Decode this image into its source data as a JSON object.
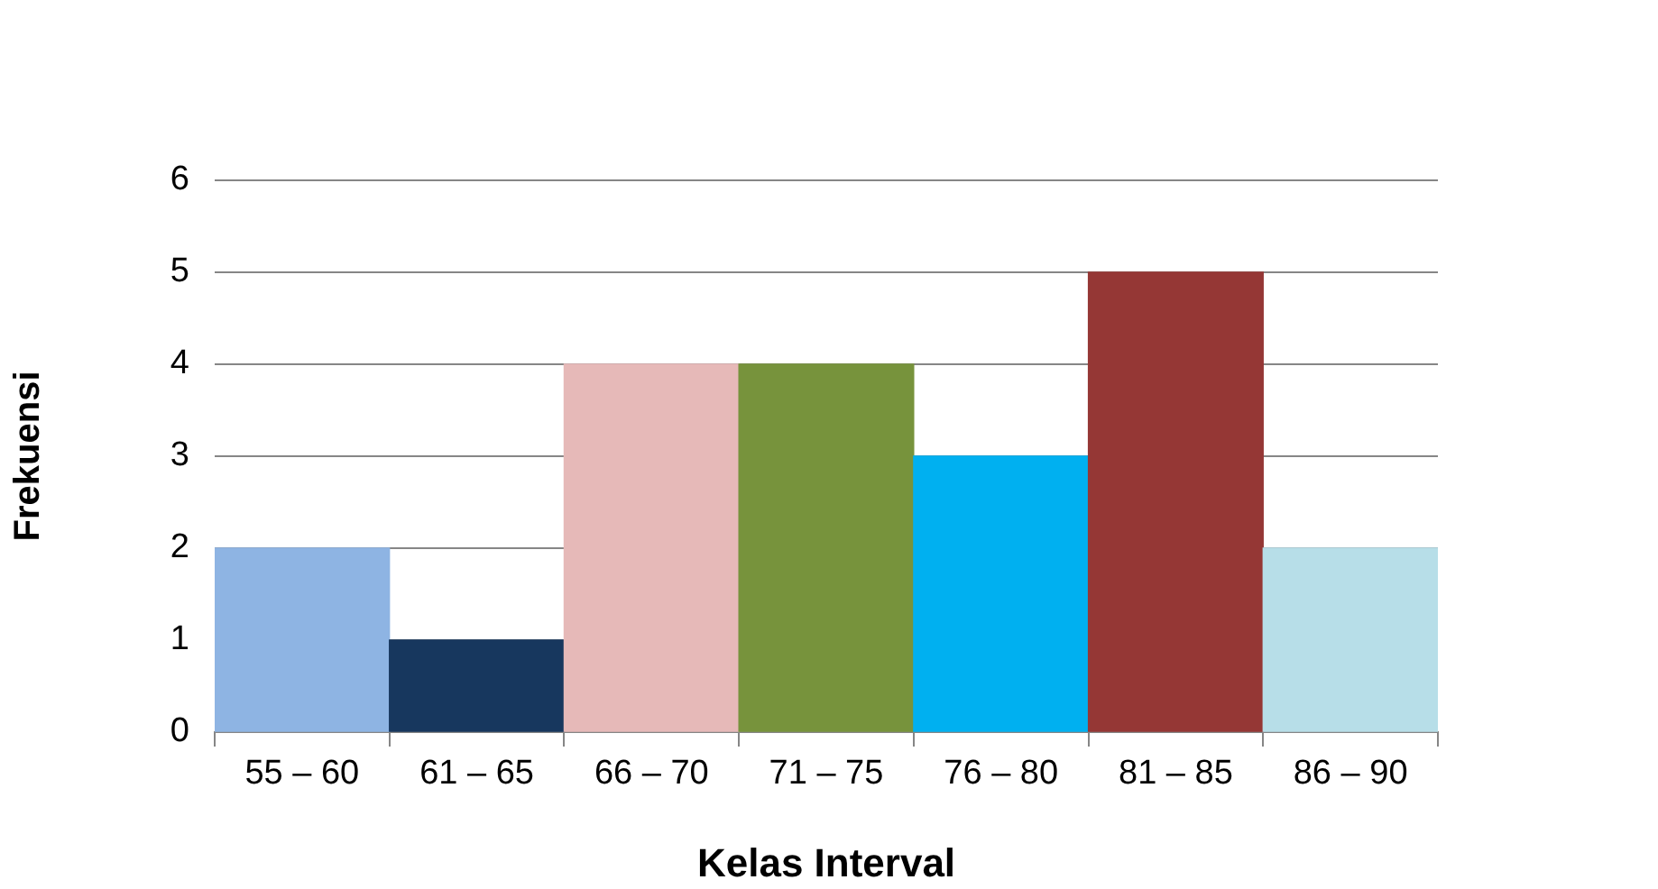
{
  "chart_data": {
    "type": "bar",
    "xlabel": "Kelas Interval",
    "ylabel": "Frekuensi",
    "categories": [
      "55 – 60",
      "61 – 65",
      "66 – 70",
      "71 – 75",
      "76 – 80",
      "81 – 85",
      "86 – 90"
    ],
    "values": [
      2,
      1,
      4,
      4,
      3,
      5,
      2
    ],
    "colors": [
      "#8eb4e3",
      "#17375e",
      "#e6b9b8",
      "#77933c",
      "#00b0f0",
      "#953735",
      "#b7dee8"
    ],
    "ylim": [
      0,
      6
    ],
    "yticks": [
      0,
      1,
      2,
      3,
      4,
      5,
      6
    ],
    "grid": "y",
    "legend": false
  }
}
